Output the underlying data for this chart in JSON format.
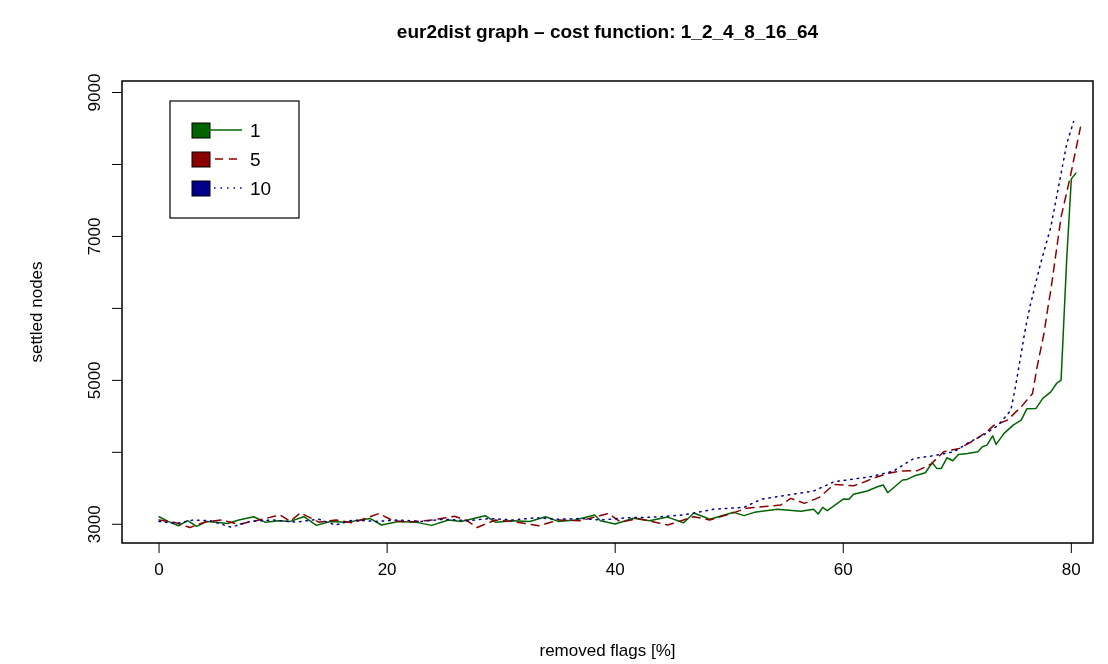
{
  "chart_data": {
    "type": "line",
    "title": "eur2dist graph – cost function: 1_2_4_8_16_64",
    "xlabel": "removed flags [%]",
    "ylabel": "settled nodes",
    "xlim": [
      -3.25,
      81.9
    ],
    "ylim": [
      2740,
      9160
    ],
    "xticks": [
      0,
      20,
      40,
      60,
      80
    ],
    "yticks": [
      3000,
      {
        "value": 4000,
        "label": null
      },
      5000,
      {
        "value": 6000,
        "label": null
      },
      7000,
      {
        "value": 8000,
        "label": null
      },
      9000
    ],
    "grid": false,
    "legend": "top left",
    "marker": "none",
    "series": [
      {
        "name": "1",
        "color": "#006400",
        "line_style": "solid",
        "x": [
          0,
          0.8,
          1.7,
          2.5,
          3.3,
          4.2,
          5,
          6,
          7,
          8.3,
          9.3,
          10.5,
          11.5,
          12.7,
          13.8,
          15,
          16.5,
          18.5,
          19.5,
          21,
          22.5,
          23.9,
          25.4,
          26.5,
          28.6,
          29.5,
          31,
          32.5,
          33.9,
          35,
          36.5,
          38.2,
          38.7,
          40,
          41.6,
          43,
          44.6,
          46,
          46.9,
          48.3,
          50.4,
          51.3,
          52.2,
          54.2,
          56.3,
          57.4,
          57.8,
          58.2,
          58.6,
          60,
          60.5,
          60.9,
          62.1,
          63,
          63.5,
          63.9,
          65.2,
          65.6,
          66.2,
          67.2,
          67.8,
          68.2,
          68.6,
          69.1,
          69.6,
          70.1,
          70.9,
          71.8,
          72.2,
          72.6,
          73.1,
          73.4,
          74.1,
          74.9,
          75.6,
          76.1,
          76.9,
          77.5,
          78.2,
          78.7,
          79.1,
          79.6,
          80,
          80.4
        ],
        "values": [
          3105,
          3040,
          2980,
          3050,
          2970,
          3040,
          3030,
          3010,
          3060,
          3105,
          3030,
          3050,
          3040,
          3105,
          2985,
          3040,
          3030,
          3082,
          2990,
          3040,
          3030,
          2985,
          3060,
          3040,
          3120,
          3030,
          3050,
          3040,
          3105,
          3040,
          3060,
          3130,
          3050,
          3004,
          3083,
          3050,
          3100,
          3022,
          3157,
          3070,
          3166,
          3120,
          3166,
          3208,
          3180,
          3208,
          3143,
          3236,
          3190,
          3351,
          3347,
          3416,
          3462,
          3522,
          3546,
          3439,
          3615,
          3624,
          3670,
          3716,
          3855,
          3777,
          3777,
          3925,
          3883,
          3971,
          3985,
          4008,
          4077,
          4100,
          4230,
          4110,
          4263,
          4378,
          4448,
          4605,
          4610,
          4749,
          4840,
          4957,
          5003,
          6700,
          7800,
          7880
        ]
      },
      {
        "name": "5",
        "color": "#8b0000",
        "line_style": "dashed",
        "x": [
          0,
          1.5,
          2.7,
          4,
          5.5,
          7,
          8.5,
          10.6,
          11.5,
          12.4,
          14,
          15.5,
          17,
          19.3,
          20.5,
          22,
          24,
          25.9,
          27,
          27.9,
          29.5,
          31,
          33.3,
          35,
          37,
          39.4,
          40.5,
          42,
          44.6,
          46.9,
          48.3,
          50.4,
          51.5,
          54.5,
          55.4,
          56.6,
          57.9,
          59.2,
          60.9,
          61.9,
          62.6,
          63.9,
          65,
          66.5,
          67.7,
          68.8,
          70.2,
          71.5,
          72.6,
          73.2,
          74.4,
          75.6,
          76.6,
          77,
          77.6,
          78,
          78.2,
          79.1,
          79.9,
          80.8
        ],
        "values": [
          3060,
          3020,
          2955,
          3030,
          3060,
          3000,
          3050,
          3130,
          3040,
          3160,
          3030,
          3060,
          3020,
          3150,
          3050,
          3030,
          3060,
          3112,
          3050,
          2955,
          3060,
          3040,
          2980,
          3060,
          3050,
          3150,
          3030,
          3080,
          2990,
          3106,
          3060,
          3162,
          3222,
          3268,
          3360,
          3291,
          3374,
          3555,
          3535,
          3591,
          3638,
          3708,
          3740,
          3745,
          3837,
          4008,
          4055,
          4170,
          4285,
          4374,
          4448,
          4632,
          4818,
          5188,
          5651,
          6067,
          6252,
          7270,
          7825,
          8518
        ]
      },
      {
        "name": "10",
        "color": "#00008b",
        "line_style": "dotted",
        "x": [
          0,
          1.5,
          3,
          4.5,
          6.3,
          8,
          10,
          12,
          14,
          15.5,
          17,
          19,
          21,
          23,
          25,
          27,
          29,
          31,
          33,
          35,
          37,
          38.7,
          41,
          43.5,
          46,
          48.6,
          51.3,
          52.8,
          55.1,
          57.4,
          59.2,
          62.4,
          64.4,
          66.2,
          67.7,
          69.7,
          71.1,
          72.3,
          73.6,
          74.7,
          75.1,
          75.6,
          76,
          76.4,
          77.3,
          78.2,
          78.9,
          79.6,
          80.2
        ],
        "values": [
          3040,
          3010,
          3060,
          3050,
          2960,
          3040,
          3060,
          3030,
          3070,
          2990,
          3060,
          3040,
          3060,
          3040,
          3070,
          3050,
          3080,
          3060,
          3090,
          3070,
          3080,
          3060,
          3090,
          3100,
          3130,
          3208,
          3236,
          3347,
          3407,
          3462,
          3591,
          3661,
          3740,
          3916,
          3948,
          4008,
          4146,
          4240,
          4378,
          4586,
          4910,
          5373,
          5743,
          6044,
          6622,
          7130,
          7709,
          8288,
          8598
        ]
      }
    ]
  }
}
